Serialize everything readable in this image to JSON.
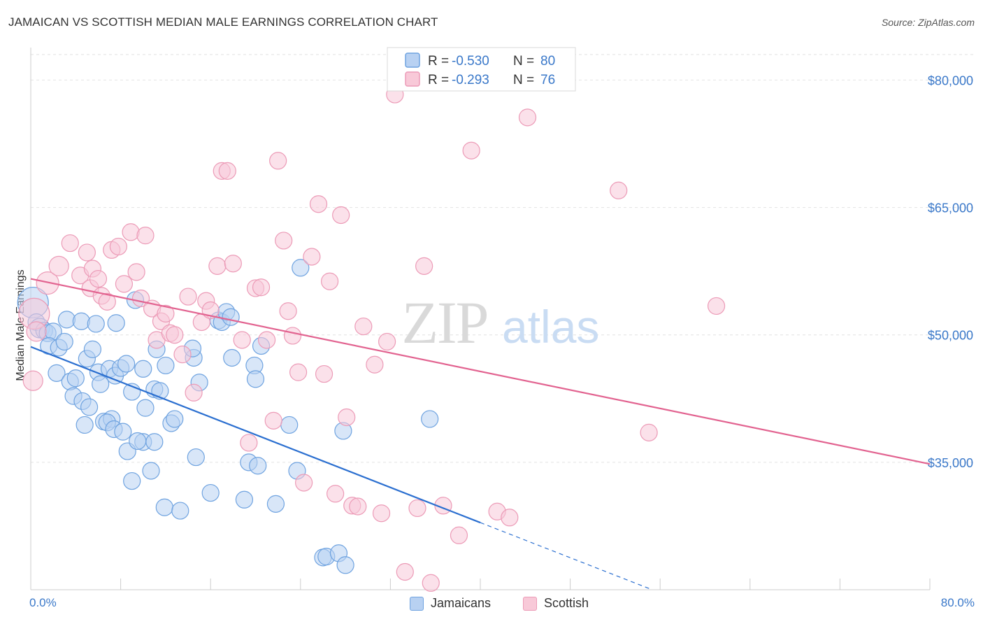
{
  "chart_data": {
    "type": "scatter",
    "title": "JAMAICAN VS SCOTTISH MEDIAN MALE EARNINGS CORRELATION CHART",
    "source": "Source: ZipAtlas.com",
    "ylabel": "Median Male Earnings",
    "xlabel": "",
    "xlim": [
      0,
      80
    ],
    "ylim": [
      20000,
      83000
    ],
    "x_tick_labels": [
      "0.0%",
      "80.0%"
    ],
    "y_ticks": [
      {
        "value": 35000,
        "label": "$35,000"
      },
      {
        "value": 50000,
        "label": "$50,000"
      },
      {
        "value": 65000,
        "label": "$65,000"
      },
      {
        "value": 80000,
        "label": "$80,000"
      }
    ],
    "watermark": "ZIPatlas",
    "legend": {
      "entries": [
        {
          "series": "Jamaicans",
          "r_label": "R =",
          "r_value": "-0.530",
          "n_label": "N =",
          "n_value": "80"
        },
        {
          "series": "Scottish",
          "r_label": "R =",
          "r_value": "-0.293",
          "n_label": "N =",
          "n_value": "76"
        }
      ]
    },
    "series": [
      {
        "name": "Jamaicans",
        "color": "#6fa3e0",
        "fill": "#b8d1f2",
        "line_color": "#2b6fd0",
        "trend": {
          "x_start": 0,
          "y_start": 48600,
          "x_solid_end": 40,
          "y_solid_end": 27900,
          "x_dash_end": 70,
          "y_dash_end": 12400
        },
        "points": [
          [
            0.2,
            53800,
            22
          ],
          [
            0.5,
            51500,
            12
          ],
          [
            0.8,
            50800,
            14
          ],
          [
            1.2,
            50500,
            12
          ],
          [
            1.5,
            50200,
            12
          ],
          [
            2.0,
            50400,
            12
          ],
          [
            1.6,
            48700,
            12
          ],
          [
            2.5,
            48500,
            12
          ],
          [
            3.0,
            49200,
            12
          ],
          [
            2.3,
            45500,
            12
          ],
          [
            3.5,
            44500,
            12
          ],
          [
            4.0,
            44900,
            12
          ],
          [
            3.8,
            42800,
            12
          ],
          [
            4.6,
            42200,
            12
          ],
          [
            5.2,
            41500,
            12
          ],
          [
            4.8,
            39400,
            12
          ],
          [
            3.2,
            51800,
            12
          ],
          [
            4.5,
            51600,
            12
          ],
          [
            5.8,
            51300,
            12
          ],
          [
            7.6,
            51400,
            12
          ],
          [
            5.0,
            47200,
            12
          ],
          [
            5.5,
            48300,
            12
          ],
          [
            6.0,
            45600,
            12
          ],
          [
            6.2,
            44200,
            12
          ],
          [
            7.0,
            46000,
            12
          ],
          [
            7.5,
            45200,
            12
          ],
          [
            8.0,
            46100,
            12
          ],
          [
            8.5,
            46600,
            12
          ],
          [
            6.5,
            39800,
            12
          ],
          [
            7.2,
            40100,
            12
          ],
          [
            6.8,
            39700,
            12
          ],
          [
            7.4,
            38900,
            12
          ],
          [
            8.2,
            38600,
            12
          ],
          [
            8.6,
            36300,
            12
          ],
          [
            9.0,
            43300,
            12
          ],
          [
            10.0,
            37400,
            12
          ],
          [
            9.5,
            37500,
            12
          ],
          [
            11.0,
            37400,
            12
          ],
          [
            10.2,
            41400,
            12
          ],
          [
            10.0,
            46000,
            12
          ],
          [
            11.0,
            43600,
            12
          ],
          [
            11.5,
            43400,
            12
          ],
          [
            11.2,
            48300,
            12
          ],
          [
            12.0,
            46400,
            12
          ],
          [
            9.3,
            54100,
            12
          ],
          [
            12.5,
            39600,
            12
          ],
          [
            12.8,
            40100,
            12
          ],
          [
            14.5,
            47300,
            12
          ],
          [
            14.4,
            48400,
            12
          ],
          [
            15.0,
            44400,
            12
          ],
          [
            14.7,
            35600,
            12
          ],
          [
            11.9,
            29700,
            12
          ],
          [
            13.3,
            29300,
            12
          ],
          [
            16.0,
            31400,
            12
          ],
          [
            10.7,
            34000,
            12
          ],
          [
            9.0,
            32800,
            12
          ],
          [
            16.7,
            51700,
            12
          ],
          [
            17.0,
            51500,
            12
          ],
          [
            17.4,
            52700,
            12
          ],
          [
            17.8,
            52100,
            12
          ],
          [
            17.9,
            47300,
            12
          ],
          [
            19.9,
            46400,
            12
          ],
          [
            20.0,
            44800,
            12
          ],
          [
            20.5,
            48700,
            12
          ],
          [
            19.4,
            35000,
            12
          ],
          [
            20.2,
            34600,
            12
          ],
          [
            19.0,
            30600,
            12
          ],
          [
            21.8,
            30100,
            12
          ],
          [
            23.0,
            39400,
            12
          ],
          [
            23.7,
            34000,
            12
          ],
          [
            24.0,
            57900,
            12
          ],
          [
            27.8,
            38700,
            12
          ],
          [
            26.0,
            23800,
            12
          ],
          [
            26.3,
            23900,
            12
          ],
          [
            27.4,
            24300,
            12
          ],
          [
            28.0,
            22900,
            12
          ],
          [
            35.5,
            40100,
            12
          ]
        ]
      },
      {
        "name": "Scottish",
        "color": "#ec9bb7",
        "fill": "#f8c9d8",
        "line_color": "#e26390",
        "trend": {
          "x_start": 0,
          "y_start": 56600,
          "x_end": 80,
          "y_end": 34800
        },
        "points": [
          [
            0.3,
            52500,
            22
          ],
          [
            0.5,
            50400,
            14
          ],
          [
            0.2,
            44600,
            14
          ],
          [
            1.5,
            56100,
            16
          ],
          [
            2.5,
            58100,
            14
          ],
          [
            3.5,
            60800,
            12
          ],
          [
            4.4,
            57000,
            12
          ],
          [
            5.0,
            59700,
            12
          ],
          [
            5.5,
            57800,
            12
          ],
          [
            5.3,
            55500,
            12
          ],
          [
            6.0,
            56600,
            12
          ],
          [
            6.3,
            54600,
            12
          ],
          [
            6.8,
            53900,
            12
          ],
          [
            7.2,
            60000,
            12
          ],
          [
            7.8,
            60400,
            12
          ],
          [
            8.3,
            56000,
            12
          ],
          [
            8.9,
            62100,
            12
          ],
          [
            9.4,
            57400,
            12
          ],
          [
            9.8,
            54300,
            12
          ],
          [
            10.2,
            61700,
            12
          ],
          [
            10.8,
            53100,
            12
          ],
          [
            11.2,
            49400,
            12
          ],
          [
            11.6,
            51600,
            12
          ],
          [
            12.0,
            52500,
            12
          ],
          [
            12.4,
            50200,
            12
          ],
          [
            12.8,
            50000,
            12
          ],
          [
            13.5,
            47700,
            12
          ],
          [
            14.0,
            54500,
            12
          ],
          [
            14.5,
            43200,
            12
          ],
          [
            15.2,
            51500,
            12
          ],
          [
            15.6,
            54000,
            12
          ],
          [
            16.0,
            52900,
            12
          ],
          [
            16.6,
            58100,
            12
          ],
          [
            17.0,
            69300,
            12
          ],
          [
            17.5,
            69300,
            12
          ],
          [
            18.0,
            58400,
            12
          ],
          [
            18.8,
            49400,
            12
          ],
          [
            19.4,
            37300,
            12
          ],
          [
            20.0,
            55500,
            12
          ],
          [
            20.5,
            55600,
            12
          ],
          [
            21.0,
            49400,
            12
          ],
          [
            21.6,
            39900,
            12
          ],
          [
            22.0,
            70500,
            12
          ],
          [
            22.5,
            61100,
            12
          ],
          [
            22.9,
            52800,
            12
          ],
          [
            23.3,
            49900,
            12
          ],
          [
            23.8,
            45600,
            12
          ],
          [
            24.3,
            32600,
            12
          ],
          [
            25.0,
            59200,
            12
          ],
          [
            25.6,
            65400,
            12
          ],
          [
            26.1,
            45400,
            12
          ],
          [
            26.6,
            56300,
            12
          ],
          [
            27.1,
            31300,
            12
          ],
          [
            27.6,
            64100,
            12
          ],
          [
            28.1,
            40300,
            12
          ],
          [
            28.6,
            29900,
            12
          ],
          [
            29.1,
            29800,
            12
          ],
          [
            29.6,
            51000,
            12
          ],
          [
            30.6,
            46500,
            12
          ],
          [
            31.2,
            29000,
            12
          ],
          [
            31.7,
            49200,
            12
          ],
          [
            32.4,
            78300,
            12
          ],
          [
            33.3,
            22100,
            12
          ],
          [
            34.4,
            29600,
            12
          ],
          [
            35.0,
            58100,
            12
          ],
          [
            35.6,
            20800,
            12
          ],
          [
            36.7,
            29900,
            12
          ],
          [
            38.1,
            26400,
            12
          ],
          [
            39.2,
            71700,
            12
          ],
          [
            41.5,
            29200,
            12
          ],
          [
            42.6,
            28500,
            12
          ],
          [
            44.2,
            75600,
            12
          ],
          [
            52.3,
            67000,
            12
          ],
          [
            55.0,
            38500,
            12
          ],
          [
            61.0,
            53400,
            12
          ]
        ]
      }
    ]
  }
}
